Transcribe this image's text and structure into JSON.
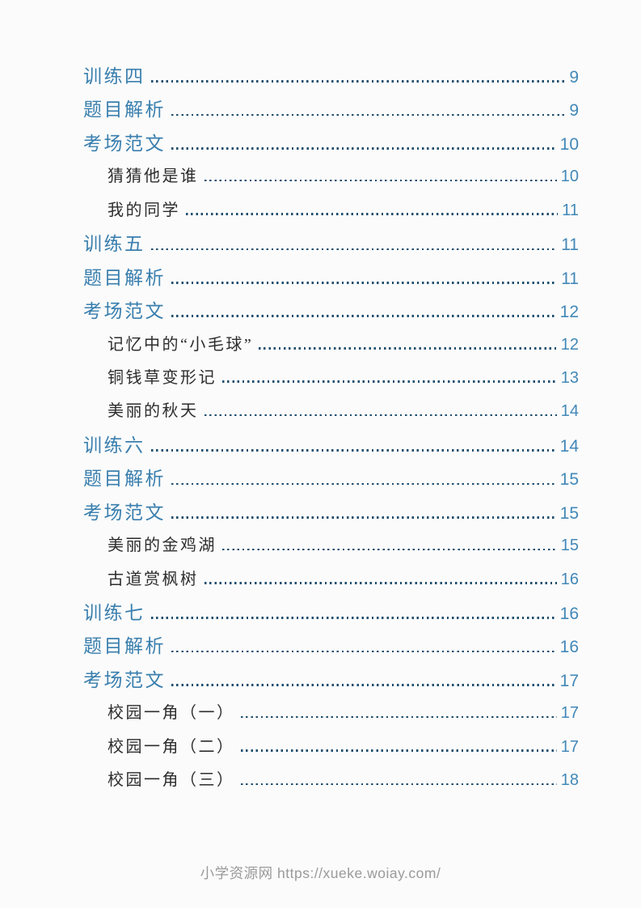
{
  "colors": {
    "page_background": "#fbfbfb",
    "entry_level1_text": "#3a7fae",
    "entry_level2_text": "#2d2d2d",
    "page_number": "#4288b8",
    "dot_leader": "#1f4e6e",
    "footer_text": "#9a9a9a"
  },
  "toc": {
    "entries": [
      {
        "label": "训练四",
        "page": "9",
        "level": 1
      },
      {
        "label": "题目解析",
        "page": "9",
        "level": 1
      },
      {
        "label": "考场范文",
        "page": "10",
        "level": 1
      },
      {
        "label": "猜猜他是谁",
        "page": "10",
        "level": 2
      },
      {
        "label": "我的同学",
        "page": "11",
        "level": 2
      },
      {
        "label": "训练五",
        "page": "11",
        "level": 1
      },
      {
        "label": "题目解析",
        "page": "11",
        "level": 1
      },
      {
        "label": "考场范文",
        "page": "12",
        "level": 1
      },
      {
        "label": "记忆中的“小毛球”",
        "page": "12",
        "level": 2
      },
      {
        "label": "铜钱草变形记",
        "page": "13",
        "level": 2
      },
      {
        "label": "美丽的秋天",
        "page": "14",
        "level": 2
      },
      {
        "label": "训练六",
        "page": "14",
        "level": 1
      },
      {
        "label": "题目解析",
        "page": "15",
        "level": 1
      },
      {
        "label": "考场范文",
        "page": "15",
        "level": 1
      },
      {
        "label": "美丽的金鸡湖",
        "page": "15",
        "level": 2
      },
      {
        "label": "古道赏枫树",
        "page": "16",
        "level": 2
      },
      {
        "label": "训练七",
        "page": "16",
        "level": 1
      },
      {
        "label": "题目解析",
        "page": "16",
        "level": 1
      },
      {
        "label": "考场范文",
        "page": "17",
        "level": 1
      },
      {
        "label": "校园一角（一）",
        "page": "17",
        "level": 2
      },
      {
        "label": "校园一角（二）",
        "page": "17",
        "level": 2
      },
      {
        "label": "校园一角（三）",
        "page": "18",
        "level": 2
      }
    ]
  },
  "footer": {
    "text": "小学资源网 https://xueke.woiay.com/"
  }
}
